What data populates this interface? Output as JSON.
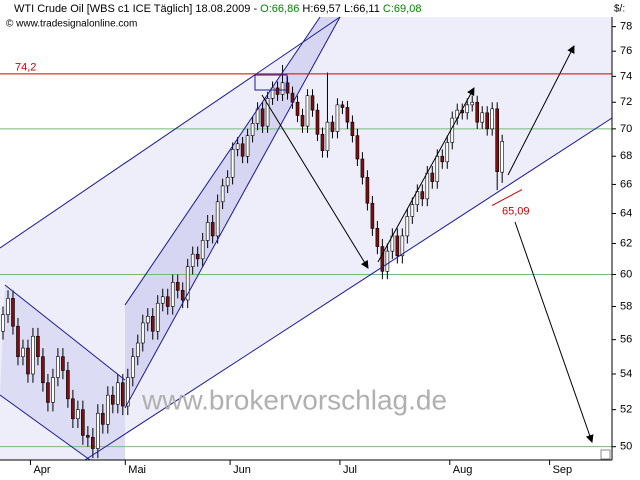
{
  "header": {
    "title": "WTI Crude Oil [WBS c1 ICE  Täglich] 18.08.2009 - ",
    "open": "O:66,86",
    "high": "H:69,57",
    "low": "L:66,11",
    "close": "C:69,08",
    "copyright": "© www.tradesignalonline.com",
    "unit": "$/:"
  },
  "watermark": "www.brokervorschlag.de",
  "chart_data": {
    "type": "candlestick",
    "open": [
      56.5,
      57.5,
      58.5,
      56.8,
      55.0,
      55.5,
      54.0,
      56.2,
      55.0,
      53.5,
      52.4,
      53.8,
      55.0,
      54.2,
      52.6,
      51.5,
      52.0,
      50.6,
      50.5,
      49.9,
      51.8,
      51.2,
      52.8,
      52.3,
      53.5,
      52.2,
      53.8,
      55.0,
      55.8,
      57.0,
      57.4,
      56.5,
      58.2,
      58.6,
      58.0,
      59.5,
      59.0,
      58.4,
      60.5,
      61.3,
      61.0,
      62.2,
      63.4,
      62.5,
      64.8,
      65.9,
      66.5,
      68.5,
      68.9,
      68.0,
      69.5,
      70.4,
      71.5,
      70.2,
      72.3,
      73.1,
      72.6,
      73.5,
      72.7,
      72.0,
      71.0,
      70.2,
      72.5,
      71.4,
      69.6,
      68.4,
      70.5,
      69.8,
      71.8,
      71.6,
      70.5,
      69.5,
      67.8,
      66.5,
      64.7,
      63.0,
      61.8,
      60.2,
      61.5,
      62.5,
      61.2,
      62.5,
      63.8,
      64.6,
      65.5,
      65.0,
      66.8,
      66.2,
      68.0,
      67.6,
      69.0,
      70.8,
      71.4,
      71.2,
      71.8,
      72.0,
      70.5,
      71.2,
      70.0,
      71.5,
      66.86
    ],
    "high": [
      58.0,
      59.0,
      59.0,
      57.3,
      56.0,
      56.0,
      56.7,
      56.7,
      55.5,
      54.0,
      54.3,
      55.5,
      55.5,
      54.7,
      53.1,
      52.5,
      52.5,
      51.1,
      51.0,
      52.3,
      52.3,
      53.3,
      53.3,
      54.0,
      54.0,
      54.3,
      55.5,
      56.3,
      57.5,
      57.9,
      57.9,
      58.7,
      59.1,
      59.1,
      60.0,
      60.0,
      59.5,
      61.0,
      61.8,
      61.8,
      62.7,
      63.9,
      63.9,
      65.3,
      66.4,
      67.0,
      69.0,
      69.4,
      69.4,
      70.0,
      70.9,
      72.0,
      72.0,
      72.8,
      73.6,
      73.6,
      74.9,
      74.0,
      73.2,
      72.5,
      71.5,
      73.0,
      73.0,
      71.9,
      70.1,
      74.3,
      71.0,
      72.3,
      72.1,
      72.1,
      71.0,
      70.0,
      68.3,
      67.0,
      65.2,
      63.5,
      62.3,
      62.0,
      63.0,
      63.0,
      63.0,
      64.3,
      65.1,
      66.0,
      66.0,
      67.3,
      67.3,
      68.5,
      68.5,
      69.5,
      71.3,
      71.9,
      71.9,
      72.3,
      72.5,
      72.5,
      71.7,
      71.7,
      72.0,
      72.0,
      69.57
    ],
    "low": [
      56.0,
      57.0,
      56.3,
      54.5,
      54.5,
      53.5,
      53.5,
      54.5,
      53.0,
      51.9,
      51.9,
      53.3,
      53.7,
      52.1,
      51.0,
      51.0,
      50.1,
      50.0,
      49.4,
      49.4,
      50.7,
      50.7,
      51.8,
      51.8,
      51.7,
      51.7,
      53.3,
      54.5,
      55.3,
      56.5,
      56.0,
      56.0,
      57.7,
      57.5,
      57.5,
      58.5,
      57.9,
      57.9,
      60.0,
      60.5,
      60.5,
      61.7,
      62.0,
      62.0,
      64.3,
      65.4,
      66.0,
      68.0,
      67.5,
      67.5,
      69.0,
      69.9,
      69.7,
      69.7,
      71.8,
      72.1,
      72.1,
      72.2,
      71.5,
      70.5,
      69.7,
      69.7,
      70.9,
      69.1,
      67.9,
      67.9,
      69.3,
      69.3,
      71.1,
      70.0,
      69.0,
      67.3,
      66.0,
      64.2,
      62.5,
      61.3,
      59.7,
      59.7,
      61.0,
      60.7,
      60.7,
      62.0,
      63.3,
      64.1,
      64.5,
      64.5,
      65.7,
      65.7,
      67.1,
      67.1,
      68.5,
      70.3,
      70.7,
      70.7,
      71.3,
      70.0,
      70.0,
      69.5,
      69.5,
      65.6,
      66.11
    ],
    "close": [
      57.5,
      58.5,
      56.8,
      55.0,
      55.5,
      54.0,
      56.2,
      55.0,
      53.5,
      52.4,
      53.8,
      55.0,
      54.2,
      52.6,
      51.5,
      52.0,
      50.6,
      50.5,
      49.9,
      51.8,
      51.2,
      52.8,
      52.3,
      53.5,
      52.2,
      53.8,
      55.0,
      55.8,
      57.0,
      57.4,
      56.5,
      58.2,
      58.6,
      58.0,
      59.5,
      59.0,
      58.4,
      60.5,
      61.3,
      61.0,
      62.2,
      63.4,
      62.5,
      64.8,
      65.9,
      66.5,
      68.5,
      68.9,
      68.0,
      69.5,
      70.4,
      71.5,
      70.2,
      72.3,
      73.1,
      72.6,
      73.5,
      72.7,
      72.0,
      71.0,
      70.2,
      72.5,
      71.4,
      69.6,
      68.4,
      70.5,
      69.8,
      71.8,
      71.6,
      70.5,
      69.5,
      67.8,
      66.5,
      64.7,
      63.0,
      61.8,
      60.2,
      61.5,
      62.5,
      61.2,
      62.5,
      63.8,
      64.6,
      65.5,
      65.0,
      66.8,
      66.2,
      68.0,
      67.6,
      69.0,
      70.8,
      71.4,
      71.2,
      71.8,
      72.0,
      70.5,
      71.2,
      70.0,
      71.5,
      66.9,
      69.08
    ],
    "up_color": "#ffffff",
    "down_color": "#7a1010",
    "xlim": [
      -0.6,
      122
    ],
    "xticks": [
      {
        "value": 5.5,
        "label": "Apr"
      },
      {
        "value": 24.5,
        "label": "Mai"
      },
      {
        "value": 45.5,
        "label": "Jun"
      },
      {
        "value": 67.5,
        "label": "Jul"
      },
      {
        "value": 89.5,
        "label": "Aug"
      },
      {
        "value": 109.5,
        "label": "Sep"
      }
    ],
    "ylim": [
      49.3,
      78.8
    ],
    "log_y": true,
    "yticks": [
      50,
      52,
      54,
      56,
      58,
      60,
      62,
      64,
      66,
      68,
      70,
      72,
      74,
      76,
      78
    ],
    "reference_lines": [
      70,
      60,
      50
    ],
    "annotations": [
      {
        "value": 74.2,
        "label": "74,2"
      },
      {
        "value": 65.09,
        "label": "65,09"
      }
    ]
  }
}
